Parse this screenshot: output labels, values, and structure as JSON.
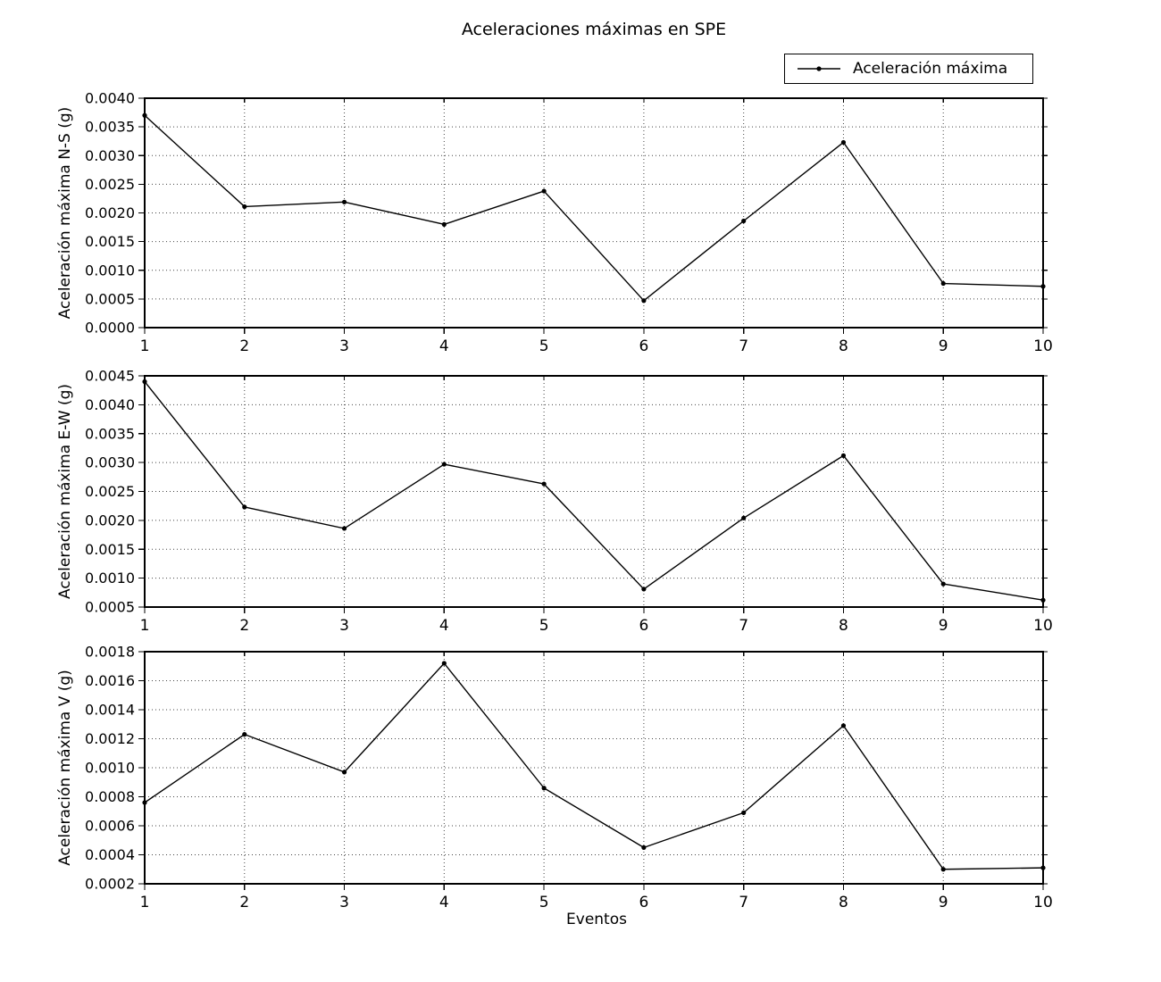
{
  "figure": {
    "title": "Aceleraciones máximas en SPE",
    "xlabel": "Eventos",
    "legend_label": "Aceleración máxima",
    "line_color": "#000000",
    "grid_color": "#444444",
    "background": "#ffffff"
  },
  "chart_data": [
    {
      "type": "line",
      "series_name": "Aceleración máxima",
      "ylabel": "Aceleración máxima N-S (g)",
      "x": [
        1,
        2,
        3,
        4,
        5,
        6,
        7,
        8,
        9,
        10
      ],
      "values": [
        0.0037,
        0.00211,
        0.00219,
        0.0018,
        0.00238,
        0.00047,
        0.00186,
        0.00323,
        0.00077,
        0.00072
      ],
      "xlim": [
        1,
        10
      ],
      "ylim": [
        0.0,
        0.004
      ],
      "xticks": [
        "1",
        "2",
        "3",
        "4",
        "5",
        "6",
        "7",
        "8",
        "9",
        "10"
      ],
      "yticks": [
        "0.0000",
        "0.0005",
        "0.0010",
        "0.0015",
        "0.0020",
        "0.0025",
        "0.0030",
        "0.0035",
        "0.0040"
      ],
      "grid": true,
      "legend_position": "above-top-right"
    },
    {
      "type": "line",
      "series_name": "Aceleración máxima",
      "ylabel": "Aceleración máxima E-W (g)",
      "x": [
        1,
        2,
        3,
        4,
        5,
        6,
        7,
        8,
        9,
        10
      ],
      "values": [
        0.0044,
        0.00223,
        0.00186,
        0.00297,
        0.00263,
        0.00081,
        0.00204,
        0.00312,
        0.0009,
        0.00062
      ],
      "xlim": [
        1,
        10
      ],
      "ylim": [
        0.0005,
        0.0045
      ],
      "xticks": [
        "1",
        "2",
        "3",
        "4",
        "5",
        "6",
        "7",
        "8",
        "9",
        "10"
      ],
      "yticks": [
        "0.0005",
        "0.0010",
        "0.0015",
        "0.0020",
        "0.0025",
        "0.0030",
        "0.0035",
        "0.0040",
        "0.0045"
      ],
      "grid": true
    },
    {
      "type": "line",
      "series_name": "Aceleración máxima",
      "ylabel": "Aceleración máxima V (g)",
      "x": [
        1,
        2,
        3,
        4,
        5,
        6,
        7,
        8,
        9,
        10
      ],
      "values": [
        0.00076,
        0.00123,
        0.00097,
        0.00172,
        0.00086,
        0.00045,
        0.00069,
        0.00129,
        0.0003,
        0.00031
      ],
      "xlim": [
        1,
        10
      ],
      "ylim": [
        0.0002,
        0.0018
      ],
      "xticks": [
        "1",
        "2",
        "3",
        "4",
        "5",
        "6",
        "7",
        "8",
        "9",
        "10"
      ],
      "yticks": [
        "0.0002",
        "0.0004",
        "0.0006",
        "0.0008",
        "0.0010",
        "0.0012",
        "0.0014",
        "0.0016",
        "0.0018"
      ],
      "grid": true
    }
  ]
}
